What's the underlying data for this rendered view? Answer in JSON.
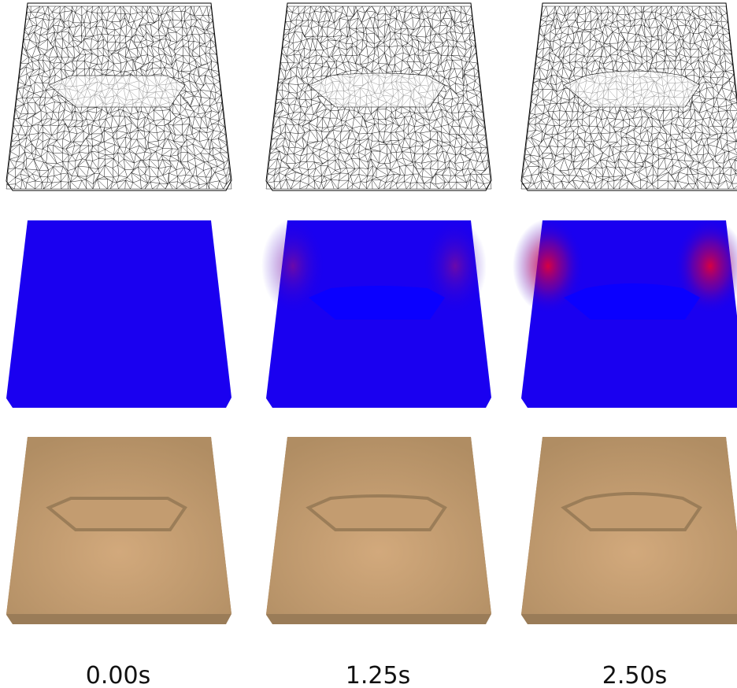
{
  "frames": [
    {
      "label": "0.00s"
    },
    {
      "label": "1.25s"
    },
    {
      "label": "2.50s"
    }
  ]
}
